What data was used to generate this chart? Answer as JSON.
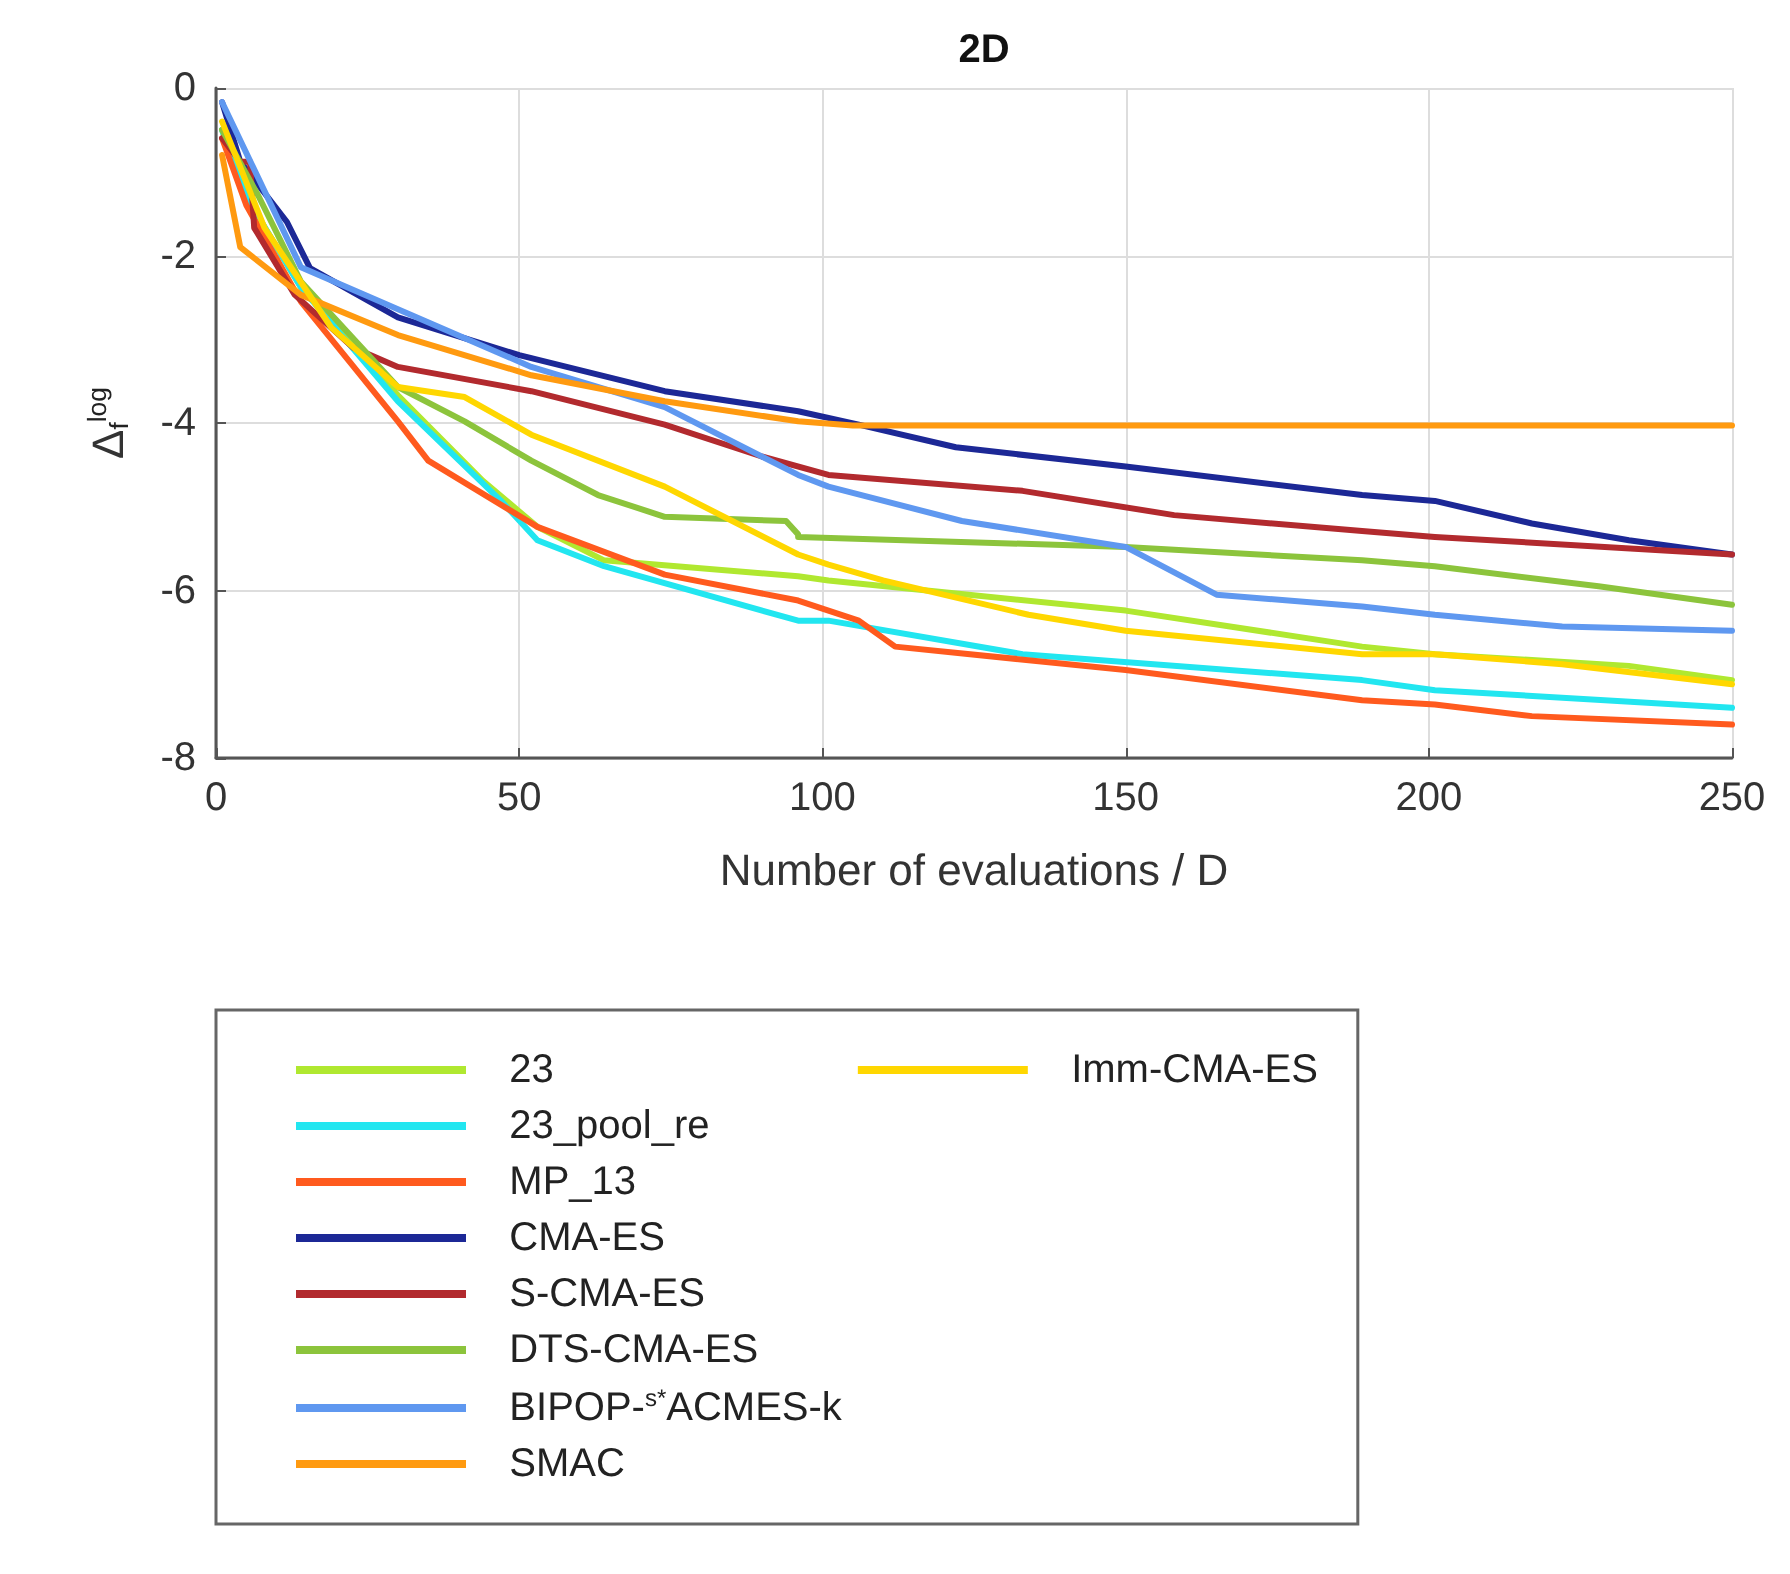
{
  "chart_data": {
    "type": "line",
    "title": "2D",
    "xlabel": "Number of evaluations / D",
    "ylabel": "Δ$_{f}$$^{log}$",
    "xlim": [
      0,
      250
    ],
    "xticks": [
      0,
      50,
      100,
      150,
      200,
      250
    ],
    "ylim": [
      -8,
      0
    ],
    "yticks": [
      -8,
      -6,
      -4,
      -2,
      0
    ],
    "grid": true,
    "legend": "bottom",
    "marker": "none",
    "line_style": "solid",
    "series": [
      {
        "name": "23",
        "color": "#b0e830",
        "x": [
          1,
          5,
          14,
          30,
          44,
          53,
          64,
          96,
          101,
          150,
          189,
          201,
          233,
          250
        ],
        "values": [
          -0.5,
          -1.3,
          -2.38,
          -3.67,
          -4.69,
          -5.24,
          -5.64,
          -5.83,
          -5.88,
          -6.24,
          -6.67,
          -6.76,
          -6.9,
          -7.07
        ]
      },
      {
        "name": "23_pool_re",
        "color": "#22e6f0",
        "x": [
          1,
          5,
          14,
          30,
          47,
          53,
          64,
          96,
          101,
          133,
          189,
          201,
          250
        ],
        "values": [
          -0.5,
          -1.3,
          -2.38,
          -3.74,
          -4.93,
          -5.4,
          -5.71,
          -6.36,
          -6.36,
          -6.76,
          -7.07,
          -7.19,
          -7.4
        ]
      },
      {
        "name": "MP_13",
        "color": "#ff5a1e",
        "x": [
          1,
          5,
          14,
          30,
          35,
          53,
          74,
          96,
          106,
          112,
          150,
          189,
          201,
          217,
          250
        ],
        "values": [
          -0.6,
          -1.4,
          -2.55,
          -3.98,
          -4.45,
          -5.24,
          -5.81,
          -6.12,
          -6.36,
          -6.67,
          -6.95,
          -7.31,
          -7.36,
          -7.5,
          -7.6
        ]
      },
      {
        "name": "CMA-ES",
        "color": "#1c2896",
        "x": [
          1,
          4,
          11.7,
          15.5,
          30,
          50,
          74,
          96,
          106,
          122,
          150,
          189,
          201,
          217,
          233,
          250
        ],
        "values": [
          -0.17,
          -0.88,
          -1.6,
          -2.15,
          -2.74,
          -3.19,
          -3.62,
          -3.86,
          -4.02,
          -4.29,
          -4.52,
          -4.86,
          -4.93,
          -5.2,
          -5.4,
          -5.57
        ]
      },
      {
        "name": "S-CMA-ES",
        "color": "#b22a2e",
        "x": [
          1,
          4,
          5.6,
          6.3,
          13,
          22.6,
          30,
          52,
          74,
          90,
          101,
          133,
          158,
          189,
          201,
          250
        ],
        "values": [
          -0.6,
          -0.88,
          -0.88,
          -1.67,
          -2.47,
          -3.1,
          -3.33,
          -3.62,
          -4.02,
          -4.4,
          -4.62,
          -4.81,
          -5.1,
          -5.29,
          -5.36,
          -5.57
        ]
      },
      {
        "name": "DTS-CMA-ES",
        "color": "#8cc43c",
        "x": [
          1,
          7,
          14,
          30,
          41,
          52,
          63,
          74,
          94,
          96,
          96,
          150,
          189,
          201,
          228,
          250
        ],
        "values": [
          -0.5,
          -1.29,
          -2.31,
          -3.57,
          -3.98,
          -4.45,
          -4.86,
          -5.12,
          -5.17,
          -5.33,
          -5.36,
          -5.48,
          -5.64,
          -5.71,
          -5.95,
          -6.17
        ]
      },
      {
        "name": "BIPOP-$^{s*}$ACMES-k",
        "color": "#5f98f0",
        "x": [
          1,
          14,
          52,
          74,
          96,
          101,
          123,
          150,
          165,
          189,
          201,
          222,
          250
        ],
        "values": [
          -0.17,
          -2.14,
          -3.33,
          -3.81,
          -4.62,
          -4.76,
          -5.17,
          -5.48,
          -6.05,
          -6.19,
          -6.29,
          -6.43,
          -6.48
        ]
      },
      {
        "name": "SMAC",
        "color": "#ff9a10",
        "x": [
          1,
          4,
          14,
          30,
          52,
          74,
          96,
          105,
          250
        ],
        "values": [
          -0.8,
          -1.9,
          -2.47,
          -2.95,
          -3.43,
          -3.74,
          -3.98,
          -4.03,
          -4.03
        ]
      },
      {
        "name": "Imm-CMA-ES",
        "color": "#ffd700",
        "x": [
          1,
          8,
          19,
          30,
          41,
          52,
          74,
          96,
          101,
          110,
          134,
          150,
          189,
          201,
          222,
          250
        ],
        "values": [
          -0.4,
          -1.67,
          -2.86,
          -3.57,
          -3.69,
          -4.14,
          -4.76,
          -5.57,
          -5.69,
          -5.88,
          -6.29,
          -6.48,
          -6.76,
          -6.76,
          -6.88,
          -7.12
        ]
      }
    ]
  }
}
